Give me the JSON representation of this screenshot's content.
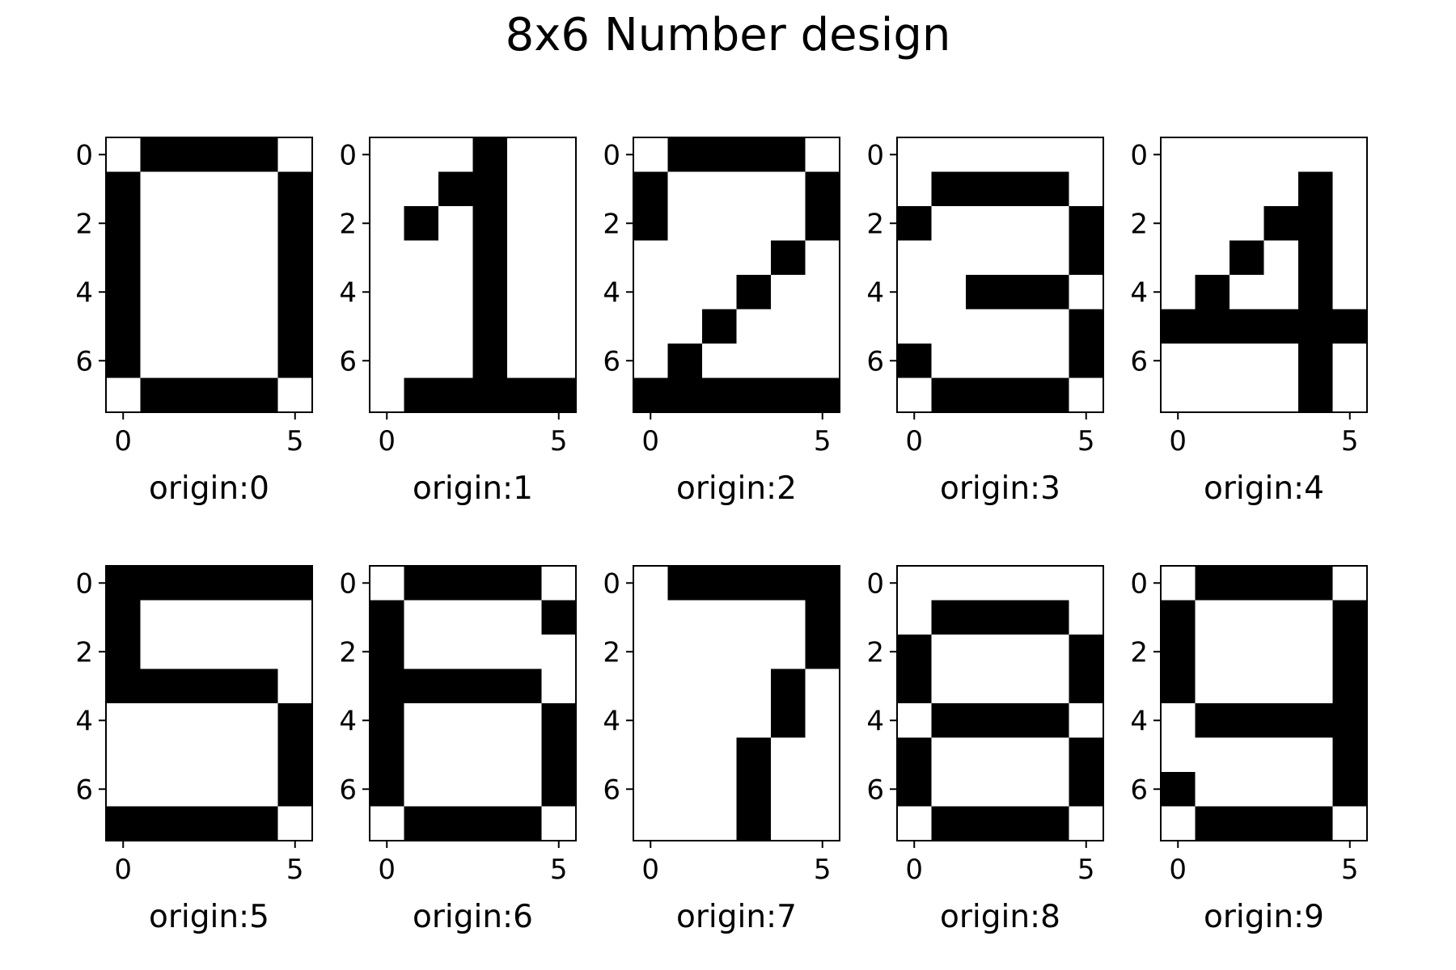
{
  "figure": {
    "title": "8x6 Number design"
  },
  "chart_data": {
    "type": "heatmap",
    "title": "8x6 Number design",
    "rows": 8,
    "cols": 6,
    "colormap": {
      "1": "#000000",
      "0": "#ffffff"
    },
    "xticks": [
      0,
      5
    ],
    "yticks": [
      0,
      2,
      4,
      6
    ],
    "panels": [
      {
        "xlabel": "origin:0",
        "grid": [
          [
            0,
            1,
            1,
            1,
            1,
            0
          ],
          [
            1,
            0,
            0,
            0,
            0,
            1
          ],
          [
            1,
            0,
            0,
            0,
            0,
            1
          ],
          [
            1,
            0,
            0,
            0,
            0,
            1
          ],
          [
            1,
            0,
            0,
            0,
            0,
            1
          ],
          [
            1,
            0,
            0,
            0,
            0,
            1
          ],
          [
            1,
            0,
            0,
            0,
            0,
            1
          ],
          [
            0,
            1,
            1,
            1,
            1,
            0
          ]
        ]
      },
      {
        "xlabel": "origin:1",
        "grid": [
          [
            0,
            0,
            0,
            1,
            0,
            0
          ],
          [
            0,
            0,
            1,
            1,
            0,
            0
          ],
          [
            0,
            1,
            0,
            1,
            0,
            0
          ],
          [
            0,
            0,
            0,
            1,
            0,
            0
          ],
          [
            0,
            0,
            0,
            1,
            0,
            0
          ],
          [
            0,
            0,
            0,
            1,
            0,
            0
          ],
          [
            0,
            0,
            0,
            1,
            0,
            0
          ],
          [
            0,
            1,
            1,
            1,
            1,
            1
          ]
        ]
      },
      {
        "xlabel": "origin:2",
        "grid": [
          [
            0,
            1,
            1,
            1,
            1,
            0
          ],
          [
            1,
            0,
            0,
            0,
            0,
            1
          ],
          [
            1,
            0,
            0,
            0,
            0,
            1
          ],
          [
            0,
            0,
            0,
            0,
            1,
            0
          ],
          [
            0,
            0,
            0,
            1,
            0,
            0
          ],
          [
            0,
            0,
            1,
            0,
            0,
            0
          ],
          [
            0,
            1,
            0,
            0,
            0,
            0
          ],
          [
            1,
            1,
            1,
            1,
            1,
            1
          ]
        ]
      },
      {
        "xlabel": "origin:3",
        "grid": [
          [
            0,
            0,
            0,
            0,
            0,
            0
          ],
          [
            0,
            1,
            1,
            1,
            1,
            0
          ],
          [
            1,
            0,
            0,
            0,
            0,
            1
          ],
          [
            0,
            0,
            0,
            0,
            0,
            1
          ],
          [
            0,
            0,
            1,
            1,
            1,
            0
          ],
          [
            0,
            0,
            0,
            0,
            0,
            1
          ],
          [
            1,
            0,
            0,
            0,
            0,
            1
          ],
          [
            0,
            1,
            1,
            1,
            1,
            0
          ]
        ]
      },
      {
        "xlabel": "origin:4",
        "grid": [
          [
            0,
            0,
            0,
            0,
            0,
            0
          ],
          [
            0,
            0,
            0,
            0,
            1,
            0
          ],
          [
            0,
            0,
            0,
            1,
            1,
            0
          ],
          [
            0,
            0,
            1,
            0,
            1,
            0
          ],
          [
            0,
            1,
            0,
            0,
            1,
            0
          ],
          [
            1,
            1,
            1,
            1,
            1,
            1
          ],
          [
            0,
            0,
            0,
            0,
            1,
            0
          ],
          [
            0,
            0,
            0,
            0,
            1,
            0
          ]
        ]
      },
      {
        "xlabel": "origin:5",
        "grid": [
          [
            1,
            1,
            1,
            1,
            1,
            1
          ],
          [
            1,
            0,
            0,
            0,
            0,
            0
          ],
          [
            1,
            0,
            0,
            0,
            0,
            0
          ],
          [
            1,
            1,
            1,
            1,
            1,
            0
          ],
          [
            0,
            0,
            0,
            0,
            0,
            1
          ],
          [
            0,
            0,
            0,
            0,
            0,
            1
          ],
          [
            0,
            0,
            0,
            0,
            0,
            1
          ],
          [
            1,
            1,
            1,
            1,
            1,
            0
          ]
        ]
      },
      {
        "xlabel": "origin:6",
        "grid": [
          [
            0,
            1,
            1,
            1,
            1,
            0
          ],
          [
            1,
            0,
            0,
            0,
            0,
            1
          ],
          [
            1,
            0,
            0,
            0,
            0,
            0
          ],
          [
            1,
            1,
            1,
            1,
            1,
            0
          ],
          [
            1,
            0,
            0,
            0,
            0,
            1
          ],
          [
            1,
            0,
            0,
            0,
            0,
            1
          ],
          [
            1,
            0,
            0,
            0,
            0,
            1
          ],
          [
            0,
            1,
            1,
            1,
            1,
            0
          ]
        ]
      },
      {
        "xlabel": "origin:7",
        "grid": [
          [
            0,
            1,
            1,
            1,
            1,
            1
          ],
          [
            0,
            0,
            0,
            0,
            0,
            1
          ],
          [
            0,
            0,
            0,
            0,
            0,
            1
          ],
          [
            0,
            0,
            0,
            0,
            1,
            0
          ],
          [
            0,
            0,
            0,
            0,
            1,
            0
          ],
          [
            0,
            0,
            0,
            1,
            0,
            0
          ],
          [
            0,
            0,
            0,
            1,
            0,
            0
          ],
          [
            0,
            0,
            0,
            1,
            0,
            0
          ]
        ]
      },
      {
        "xlabel": "origin:8",
        "grid": [
          [
            0,
            0,
            0,
            0,
            0,
            0
          ],
          [
            0,
            1,
            1,
            1,
            1,
            0
          ],
          [
            1,
            0,
            0,
            0,
            0,
            1
          ],
          [
            1,
            0,
            0,
            0,
            0,
            1
          ],
          [
            0,
            1,
            1,
            1,
            1,
            0
          ],
          [
            1,
            0,
            0,
            0,
            0,
            1
          ],
          [
            1,
            0,
            0,
            0,
            0,
            1
          ],
          [
            0,
            1,
            1,
            1,
            1,
            0
          ]
        ]
      },
      {
        "xlabel": "origin:9",
        "grid": [
          [
            0,
            1,
            1,
            1,
            1,
            0
          ],
          [
            1,
            0,
            0,
            0,
            0,
            1
          ],
          [
            1,
            0,
            0,
            0,
            0,
            1
          ],
          [
            1,
            0,
            0,
            0,
            0,
            1
          ],
          [
            0,
            1,
            1,
            1,
            1,
            1
          ],
          [
            0,
            0,
            0,
            0,
            0,
            1
          ],
          [
            1,
            0,
            0,
            0,
            0,
            1
          ],
          [
            0,
            1,
            1,
            1,
            1,
            0
          ]
        ]
      }
    ]
  }
}
